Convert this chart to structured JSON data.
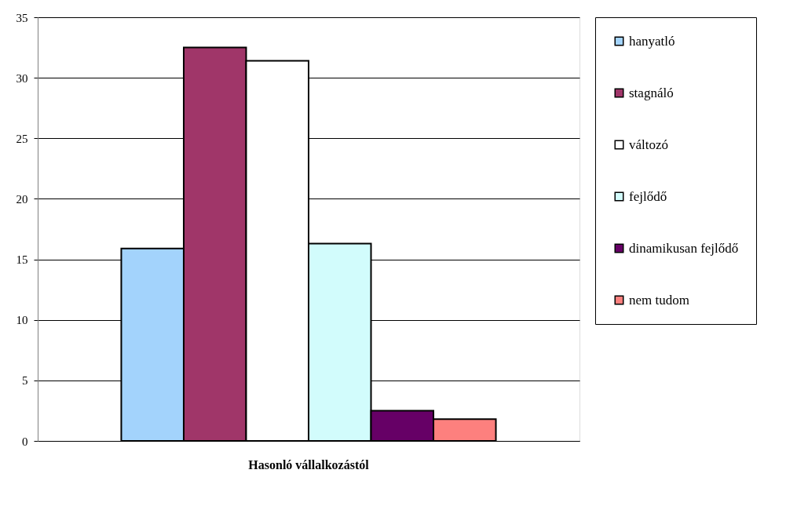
{
  "chart_data": {
    "type": "bar",
    "categories": [
      "Hasonló vállalkozástól"
    ],
    "series": [
      {
        "name": "hanyatló",
        "color": "#a3d3fc",
        "values": [
          15.9
        ]
      },
      {
        "name": "stagnáló",
        "color": "#a03669",
        "values": [
          32.5
        ]
      },
      {
        "name": "változó",
        "color": "#ffffff",
        "values": [
          31.4
        ]
      },
      {
        "name": "fejlődő",
        "color": "#d2fcfc",
        "values": [
          16.3
        ]
      },
      {
        "name": "dinamikusan fejlődő",
        "color": "#660066",
        "values": [
          2.5
        ]
      },
      {
        "name": "nem tudom",
        "color": "#fd807e",
        "values": [
          1.8
        ]
      }
    ],
    "ylim": [
      0,
      35
    ],
    "yticks": [
      0,
      5,
      10,
      15,
      20,
      25,
      30,
      35
    ],
    "grid": "y",
    "legend": "right"
  }
}
